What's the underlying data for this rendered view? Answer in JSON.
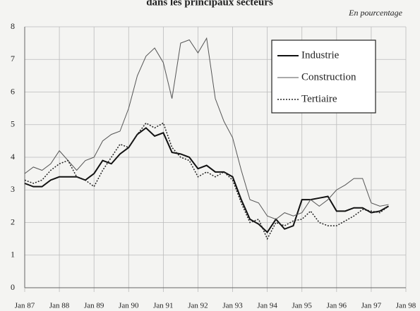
{
  "chart_data": {
    "type": "line",
    "title": "dans les principaux secteurs",
    "subtitle": "En pourcentage",
    "x": [
      1987,
      1987.25,
      1987.5,
      1987.75,
      1988,
      1988.25,
      1988.5,
      1988.75,
      1989,
      1989.25,
      1989.5,
      1989.75,
      1990,
      1990.25,
      1990.5,
      1990.75,
      1991,
      1991.25,
      1991.5,
      1991.75,
      1992,
      1992.25,
      1992.5,
      1992.75,
      1993,
      1993.25,
      1993.5,
      1993.75,
      1994,
      1994.25,
      1994.5,
      1994.75,
      1995,
      1995.25,
      1995.5,
      1995.75,
      1996,
      1996.25,
      1996.5,
      1996.75,
      1997,
      1997.25,
      1997.5
    ],
    "series": [
      {
        "name": "Industrie",
        "color": "#111111",
        "style": "solid",
        "values": [
          3.2,
          3.1,
          3.1,
          3.3,
          3.4,
          3.4,
          3.4,
          3.3,
          3.5,
          3.9,
          3.8,
          4.1,
          4.3,
          4.7,
          4.9,
          4.65,
          4.75,
          4.15,
          4.1,
          4.0,
          3.65,
          3.75,
          3.55,
          3.55,
          3.4,
          2.7,
          2.1,
          1.95,
          1.7,
          2.1,
          1.8,
          1.9,
          2.7,
          2.7,
          2.75,
          2.8,
          2.35,
          2.35,
          2.45,
          2.45,
          2.3,
          2.35,
          2.5
        ]
      },
      {
        "name": "Construction",
        "color": "#555555",
        "style": "thin",
        "values": [
          3.5,
          3.7,
          3.6,
          3.8,
          4.2,
          3.9,
          3.6,
          3.9,
          4.0,
          4.5,
          4.7,
          4.8,
          5.5,
          6.5,
          7.1,
          7.35,
          6.9,
          5.8,
          7.5,
          7.6,
          7.2,
          7.65,
          5.8,
          5.1,
          4.6,
          3.6,
          2.7,
          2.6,
          2.2,
          2.1,
          2.3,
          2.2,
          2.3,
          2.7,
          2.5,
          2.7,
          3.0,
          3.15,
          3.35,
          3.35,
          2.6,
          2.5,
          2.55
        ]
      },
      {
        "name": "Tertiaire",
        "color": "#222222",
        "style": "dotted",
        "values": [
          3.3,
          3.2,
          3.3,
          3.6,
          3.8,
          3.9,
          3.4,
          3.3,
          3.1,
          3.6,
          4.0,
          4.4,
          4.3,
          4.7,
          5.05,
          4.9,
          5.05,
          4.3,
          4.0,
          3.9,
          3.4,
          3.55,
          3.4,
          3.55,
          3.3,
          2.6,
          2.0,
          2.1,
          1.5,
          2.0,
          1.9,
          2.05,
          2.1,
          2.35,
          2.0,
          1.9,
          1.9,
          2.05,
          2.2,
          2.4,
          2.35,
          2.3,
          2.5
        ]
      }
    ],
    "xlim": [
      1987,
      1998
    ],
    "xticks": [
      {
        "value": 1987,
        "label": "Jan 87"
      },
      {
        "value": 1988,
        "label": "Jan 88"
      },
      {
        "value": 1989,
        "label": "Jan 89"
      },
      {
        "value": 1990,
        "label": "Jan 90"
      },
      {
        "value": 1991,
        "label": "Jan 91"
      },
      {
        "value": 1992,
        "label": "Jan 92"
      },
      {
        "value": 1993,
        "label": "Jan 93"
      },
      {
        "value": 1994,
        "label": "Jan 94"
      },
      {
        "value": 1995,
        "label": "Jan 95"
      },
      {
        "value": 1996,
        "label": "Jan 96"
      },
      {
        "value": 1997,
        "label": "Jan 97"
      },
      {
        "value": 1998,
        "label": "Jan 98"
      }
    ],
    "ylim": [
      0,
      8
    ],
    "yticks": [
      0,
      1,
      2,
      3,
      4,
      5,
      6,
      7,
      8
    ],
    "grid": true,
    "legend": "upper right"
  }
}
